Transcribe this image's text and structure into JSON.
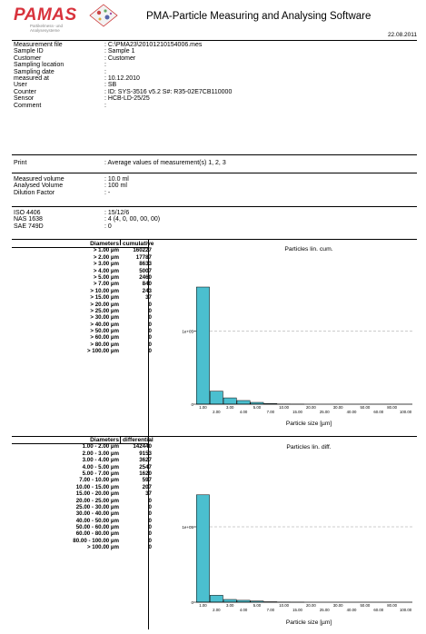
{
  "header": {
    "logo_text": "PAMAS",
    "logo_sub1": "Partikelmess- und",
    "logo_sub2": "Analysesysteme",
    "title": "PMA-Particle Measuring and Analysing Software",
    "date": "22.08.2011"
  },
  "info": [
    {
      "key": "Measurement file",
      "value": ": C:\\PMA23\\20101210154006.mes"
    },
    {
      "key": "Sample ID",
      "value": ": Sample 1"
    },
    {
      "key": "Customer",
      "value": ": Customer"
    },
    {
      "key": "Sampling location",
      "value": ":"
    },
    {
      "key": "Sampling date",
      "value": ":"
    },
    {
      "key": "measured at",
      "value": ": 10.12.2010"
    },
    {
      "key": "User",
      "value": ": SB"
    },
    {
      "key": "Counter",
      "value": ": ID: SYS-3516 v5.2  S#: R35-02E7CB110000"
    },
    {
      "key": "Sensor",
      "value": ": HCB-LD-25/25"
    },
    {
      "key": "Comment",
      "value": ":"
    }
  ],
  "print": {
    "key": "Print",
    "value": ": Average values of measurement(s) 1, 2, 3"
  },
  "volumes": [
    {
      "key": "Measured volume",
      "value": ": 10.0 ml"
    },
    {
      "key": "Analysed Volume",
      "value": ": 100 ml"
    },
    {
      "key": "Dilution Factor",
      "value": ": -"
    }
  ],
  "codes": [
    {
      "key": "ISO 4406",
      "value": ": 15/12/6"
    },
    {
      "key": "NAS 1638",
      "value": ": 4 (4, 0, 00, 00, 00)"
    },
    {
      "key": "SAE 749D",
      "value": ": 0"
    }
  ],
  "cumulative_table": {
    "h1": "Diameters",
    "h2": "cumulative",
    "rows": [
      {
        "d": "> 1.00 µm",
        "v": "160227"
      },
      {
        "d": "> 2.00 µm",
        "v": "17787"
      },
      {
        "d": "> 3.00 µm",
        "v": "8633"
      },
      {
        "d": "> 4.00 µm",
        "v": "5007"
      },
      {
        "d": "> 5.00 µm",
        "v": "2460"
      },
      {
        "d": "> 7.00 µm",
        "v": "840"
      },
      {
        "d": "> 10.00 µm",
        "v": "243"
      },
      {
        "d": "> 15.00 µm",
        "v": "37"
      },
      {
        "d": "> 20.00 µm",
        "v": "0"
      },
      {
        "d": "> 25.00 µm",
        "v": "0"
      },
      {
        "d": "> 30.00 µm",
        "v": "0"
      },
      {
        "d": "> 40.00 µm",
        "v": "0"
      },
      {
        "d": "> 50.00 µm",
        "v": "0"
      },
      {
        "d": "> 60.00 µm",
        "v": "0"
      },
      {
        "d": "> 80.00 µm",
        "v": "0"
      },
      {
        "d": "> 100.00 µm",
        "v": "0"
      }
    ]
  },
  "differential_table": {
    "h1": "Diameters",
    "h2": "differential",
    "rows": [
      {
        "d": "1.00 -   2.00 µm",
        "v": "142440"
      },
      {
        "d": "2.00 -   3.00 µm",
        "v": "9153"
      },
      {
        "d": "3.00 -   4.00 µm",
        "v": "3627"
      },
      {
        "d": "4.00 -   5.00 µm",
        "v": "2547"
      },
      {
        "d": "5.00 -   7.00 µm",
        "v": "1620"
      },
      {
        "d": "7.00 -  10.00 µm",
        "v": "597"
      },
      {
        "d": "10.00 -  15.00 µm",
        "v": "207"
      },
      {
        "d": "15.00 -  20.00 µm",
        "v": "37"
      },
      {
        "d": "20.00 -  25.00 µm",
        "v": "0"
      },
      {
        "d": "25.00 -  30.00 µm",
        "v": "0"
      },
      {
        "d": "30.00 -  40.00 µm",
        "v": "0"
      },
      {
        "d": "40.00 -  50.00 µm",
        "v": "0"
      },
      {
        "d": "50.00 -  60.00 µm",
        "v": "0"
      },
      {
        "d": "60.00 -  80.00 µm",
        "v": "0"
      },
      {
        "d": "80.00 - 100.00 µm",
        "v": "0"
      },
      {
        "d": "> 100.00 µm",
        "v": "0"
      }
    ]
  },
  "chart_data": [
    {
      "type": "bar",
      "title": "Particles lin. cum.",
      "xlabel": "Particle size [µm]",
      "ylabel": "",
      "categories": [
        "1.00",
        "2.00",
        "3.00",
        "4.00",
        "5.00",
        "7.00",
        "10.00",
        "15.00",
        "20.00",
        "25.00",
        "30.00",
        "40.00",
        "50.00",
        "60.00",
        "80.00",
        "100.00"
      ],
      "values": [
        160227,
        17787,
        8633,
        5007,
        2460,
        840,
        243,
        37,
        0,
        0,
        0,
        0,
        0,
        0,
        0,
        0
      ],
      "ylim": [
        0,
        200000
      ],
      "yticks": [
        {
          "v": 0,
          "label": "0"
        },
        {
          "v": 100000,
          "label": "1e+05"
        }
      ],
      "bar_color": "#4bbfcf"
    },
    {
      "type": "bar",
      "title": "Particles lin. diff.",
      "xlabel": "Particle size [µm]",
      "ylabel": "",
      "categories": [
        "1.00",
        "2.00",
        "3.00",
        "4.00",
        "5.00",
        "7.00",
        "10.00",
        "15.00",
        "20.00",
        "25.00",
        "30.00",
        "40.00",
        "50.00",
        "60.00",
        "80.00",
        "100.00"
      ],
      "values": [
        142440,
        9153,
        3627,
        2547,
        1620,
        597,
        207,
        37,
        0,
        0,
        0,
        0,
        0,
        0,
        0,
        0
      ],
      "ylim": [
        0,
        200000
      ],
      "yticks": [
        {
          "v": 0,
          "label": "0"
        },
        {
          "v": 100000,
          "label": "1e+05"
        }
      ],
      "bar_color": "#4bbfcf"
    }
  ]
}
